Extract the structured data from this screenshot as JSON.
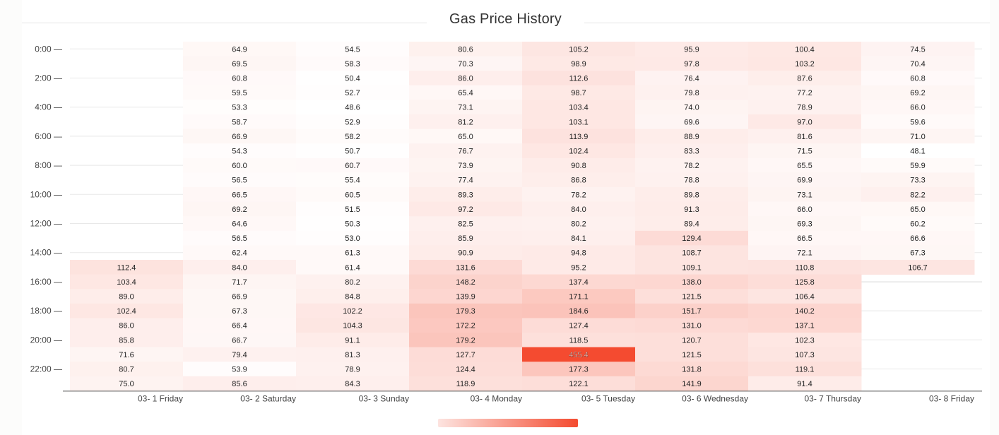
{
  "chart_data": {
    "type": "heatmap",
    "title": "Gas Price History",
    "x_categories": [
      "03- 1 Friday",
      "03- 2 Saturday",
      "03- 3 Sunday",
      "03- 4 Monday",
      "03- 5 Tuesday",
      "03- 6 Wednesday",
      "03- 7 Thursday",
      "03- 8 Friday"
    ],
    "y_tick_labels": [
      "0:00 —",
      "2:00 —",
      "4:00 —",
      "6:00 —",
      "8:00 —",
      "10:00 —",
      "12:00 —",
      "14:00 —",
      "16:00 —",
      "18:00 —",
      "20:00 —",
      "22:00 —"
    ],
    "hours": 24,
    "values": [
      [
        null,
        64.9,
        54.5,
        80.6,
        105.2,
        95.9,
        100.4,
        74.5
      ],
      [
        null,
        69.5,
        58.3,
        70.3,
        98.9,
        97.8,
        103.2,
        70.4
      ],
      [
        null,
        60.8,
        50.4,
        86.0,
        112.6,
        76.4,
        87.6,
        60.8
      ],
      [
        null,
        59.5,
        52.7,
        65.4,
        98.7,
        79.8,
        77.2,
        69.2
      ],
      [
        null,
        53.3,
        48.6,
        73.1,
        103.4,
        74.0,
        78.9,
        66.0
      ],
      [
        null,
        58.7,
        52.9,
        81.2,
        103.1,
        69.6,
        97.0,
        59.6
      ],
      [
        null,
        66.9,
        58.2,
        65.0,
        113.9,
        88.9,
        81.6,
        71.0
      ],
      [
        null,
        54.3,
        50.7,
        76.7,
        102.4,
        83.3,
        71.5,
        48.1
      ],
      [
        null,
        60.0,
        60.7,
        73.9,
        90.8,
        78.2,
        65.5,
        59.9
      ],
      [
        null,
        56.5,
        55.4,
        77.4,
        86.8,
        78.8,
        69.9,
        73.3
      ],
      [
        null,
        66.5,
        60.5,
        89.3,
        78.2,
        89.8,
        73.1,
        82.2
      ],
      [
        null,
        69.2,
        51.5,
        97.2,
        84.0,
        91.3,
        66.0,
        65.0
      ],
      [
        null,
        64.6,
        50.3,
        82.5,
        80.2,
        89.4,
        69.3,
        60.2
      ],
      [
        null,
        56.5,
        53.0,
        85.9,
        84.1,
        129.4,
        66.5,
        66.6
      ],
      [
        null,
        62.4,
        61.3,
        90.9,
        94.8,
        108.7,
        72.1,
        67.3
      ],
      [
        112.4,
        84.0,
        61.4,
        131.6,
        95.2,
        109.1,
        110.8,
        106.7
      ],
      [
        103.4,
        71.7,
        80.2,
        148.2,
        137.4,
        138.0,
        125.8,
        null
      ],
      [
        89.0,
        66.9,
        84.8,
        139.9,
        171.1,
        121.5,
        106.4,
        null
      ],
      [
        102.4,
        67.3,
        102.2,
        179.3,
        184.6,
        151.7,
        140.2,
        null
      ],
      [
        86.0,
        66.4,
        104.3,
        172.2,
        127.4,
        131.0,
        137.1,
        null
      ],
      [
        85.8,
        66.7,
        91.1,
        179.2,
        118.5,
        120.7,
        102.3,
        null
      ],
      [
        71.6,
        79.4,
        81.3,
        127.7,
        455.4,
        121.5,
        107.3,
        null
      ],
      [
        80.7,
        53.9,
        78.9,
        124.4,
        177.3,
        131.8,
        119.1,
        null
      ],
      [
        75.0,
        85.6,
        84.3,
        118.9,
        122.1,
        141.9,
        91.4,
        null
      ]
    ],
    "color_range": [
      48.1,
      455.4
    ],
    "color_low": "#ffffff",
    "color_high": "#f44b30",
    "grid": true,
    "legend": "bottom-center"
  }
}
